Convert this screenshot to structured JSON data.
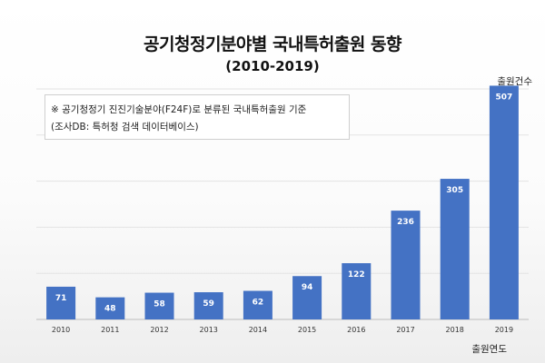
{
  "chart_data": {
    "type": "bar",
    "title": "공기청정기분야별 국내특허출원 동향",
    "subtitle": "(2010-2019)",
    "ylabel": "출원건수",
    "xlabel": "출원연도",
    "categories": [
      "2010",
      "2011",
      "2012",
      "2013",
      "2014",
      "2015",
      "2016",
      "2017",
      "2018",
      "2019"
    ],
    "values": [
      71,
      48,
      58,
      59,
      62,
      94,
      122,
      236,
      305,
      507
    ],
    "ylim": [
      0,
      500
    ],
    "grid": true,
    "bar_color": "#4472c4",
    "annotation_lines": [
      "※ 공기청정기 진진기술분야(F24F)로 분류된 국내특허출원 기준",
      "(조사DB: 특허청 검색 데이터베이스)"
    ]
  }
}
